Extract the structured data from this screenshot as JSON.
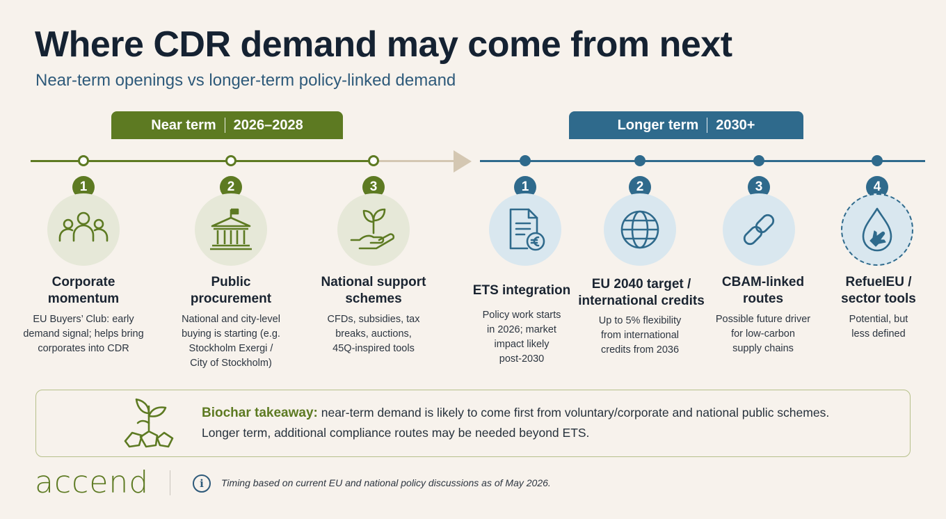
{
  "title": "Where CDR demand may come from next",
  "subtitle": "Near-term openings vs longer-term policy-linked demand",
  "colors": {
    "near": "#5d7a22",
    "long": "#2f6a8c",
    "arrow": "#d4c7b2",
    "background": "#f7f2ec"
  },
  "near_term": {
    "label": "Near term",
    "period": "2026–2028",
    "items": [
      {
        "number": "1",
        "icon": "people-group-icon",
        "name_lines": [
          "Corporate",
          "momentum"
        ],
        "desc_lines": [
          "EU Buyers’ Club: early",
          "demand signal; helps bring",
          "corporates into CDR"
        ]
      },
      {
        "number": "2",
        "icon": "government-building-icon",
        "name_lines": [
          "Public",
          "procurement"
        ],
        "desc_lines": [
          "National and city-level",
          "buying is starting (e.g.",
          "Stockholm Exergi /",
          "City of Stockholm)"
        ]
      },
      {
        "number": "3",
        "icon": "hand-sprout-icon",
        "name_lines": [
          "National support",
          "schemes"
        ],
        "desc_lines": [
          "CFDs, subsidies, tax",
          "breaks, auctions,",
          "45Q-inspired tools"
        ]
      }
    ]
  },
  "long_term": {
    "label": "Longer term",
    "period": "2030+",
    "items": [
      {
        "number": "1",
        "icon": "document-euro-icon",
        "name_lines": [
          "ETS integration"
        ],
        "desc_lines": [
          "Policy work starts",
          "in 2026; market",
          "impact likely",
          "post-2030"
        ]
      },
      {
        "number": "2",
        "icon": "globe-icon",
        "name_lines": [
          "EU 2040 target /",
          "international credits"
        ],
        "desc_lines": [
          "Up to 5% flexibility",
          "from international",
          "credits from 2036"
        ]
      },
      {
        "number": "3",
        "icon": "chain-link-icon",
        "name_lines": [
          "CBAM-linked",
          "routes"
        ],
        "desc_lines": [
          "Possible future driver",
          "for low-carbon",
          "supply chains"
        ]
      },
      {
        "number": "4",
        "icon": "fuel-drop-plane-icon",
        "name_lines": [
          "RefuelEU /",
          "sector tools"
        ],
        "desc_lines": [
          "Potential, but",
          "less defined"
        ]
      }
    ]
  },
  "takeaway": {
    "icon": "biochar-sprout-icon",
    "label": "Biochar takeaway:",
    "line1": "near-term demand is likely to come first from voluntary/corporate and national public schemes.",
    "line2": "Longer term, additional compliance routes may be needed beyond ETS."
  },
  "footer": {
    "logo": "accend",
    "info_icon": "info-icon",
    "note": "Timing based on current EU and national policy discussions as of May 2026."
  }
}
